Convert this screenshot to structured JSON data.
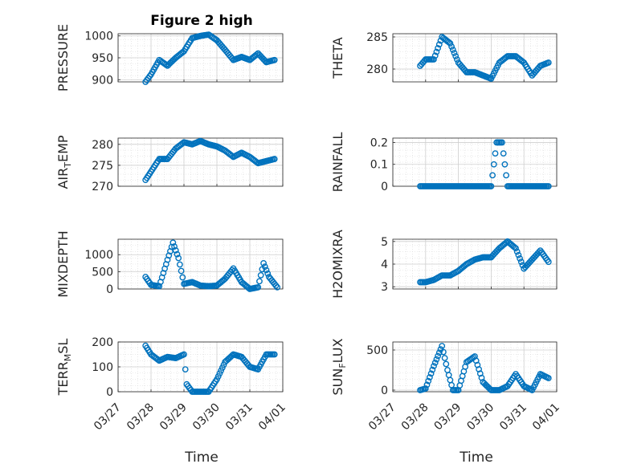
{
  "figure_title": "Figure 2 high",
  "x_axis_label": "Time",
  "x_ticks": [
    "03/27",
    "03/28",
    "03/29",
    "03/30",
    "03/31",
    "04/01"
  ],
  "marker_color": "#0072BD",
  "chart_data": [
    {
      "type": "scatter",
      "id": "pressure",
      "ylabel": "PRESSURE",
      "ylim": [
        895,
        1005
      ],
      "yticks": [
        "900",
        "950",
        "1000"
      ],
      "ytick_values": [
        900,
        950,
        1000
      ],
      "x": [
        "03/27 20:00",
        "03/28 00:00",
        "03/28 06:00",
        "03/28 12:00",
        "03/28 18:00",
        "03/29 00:00",
        "03/29 06:00",
        "03/29 12:00",
        "03/29 18:00",
        "03/30 00:00",
        "03/30 06:00",
        "03/30 12:00",
        "03/30 18:00",
        "03/31 00:00",
        "03/31 06:00",
        "03/31 12:00",
        "03/31 18:00"
      ],
      "y": [
        895,
        912,
        945,
        932,
        950,
        965,
        995,
        1000,
        1003,
        990,
        968,
        945,
        952,
        945,
        960,
        940,
        945
      ]
    },
    {
      "type": "scatter",
      "id": "theta",
      "ylabel": "THETA",
      "ylim": [
        278,
        285.5
      ],
      "yticks": [
        "280",
        "285"
      ],
      "ytick_values": [
        280,
        285
      ],
      "x": [
        "03/27 20:00",
        "03/28 00:00",
        "03/28 06:00",
        "03/28 12:00",
        "03/28 18:00",
        "03/29 00:00",
        "03/29 06:00",
        "03/29 12:00",
        "03/29 18:00",
        "03/30 00:00",
        "03/30 06:00",
        "03/30 12:00",
        "03/30 18:00",
        "03/31 00:00",
        "03/31 06:00",
        "03/31 12:00",
        "03/31 18:00"
      ],
      "y": [
        280.5,
        281.5,
        281.5,
        285,
        284,
        281,
        279.5,
        279.5,
        279,
        278.5,
        281,
        282,
        282,
        281,
        279,
        280.5,
        281
      ]
    },
    {
      "type": "scatter",
      "id": "air_temp",
      "ylabel": "AIR_TEMP",
      "ylim": [
        270,
        281.5
      ],
      "yticks": [
        "270",
        "275",
        "280"
      ],
      "ytick_values": [
        270,
        275,
        280
      ],
      "x": [
        "03/27 20:00",
        "03/28 00:00",
        "03/28 06:00",
        "03/28 12:00",
        "03/28 18:00",
        "03/29 00:00",
        "03/29 06:00",
        "03/29 12:00",
        "03/29 18:00",
        "03/30 00:00",
        "03/30 06:00",
        "03/30 12:00",
        "03/30 18:00",
        "03/31 00:00",
        "03/31 06:00",
        "03/31 12:00",
        "03/31 18:00"
      ],
      "y": [
        271.5,
        273.5,
        276.5,
        276.5,
        279,
        280.5,
        280,
        280.8,
        280,
        279.5,
        278.5,
        277,
        278,
        277,
        275.5,
        276,
        276.5
      ]
    },
    {
      "type": "scatter",
      "id": "rainfall",
      "ylabel": "RAINFALL",
      "ylim": [
        0,
        0.22
      ],
      "yticks": [
        "0",
        "0.1",
        "0.2"
      ],
      "ytick_values": [
        0,
        0.1,
        0.2
      ],
      "x": [
        "03/27 20:00",
        "03/28 00:00",
        "03/28 06:00",
        "03/28 12:00",
        "03/28 18:00",
        "03/29 00:00",
        "03/29 06:00",
        "03/29 12:00",
        "03/29 18:00",
        "03/30 00:00",
        "03/30 04:00",
        "03/30 08:00",
        "03/30 12:00",
        "03/30 18:00",
        "03/31 00:00",
        "03/31 06:00",
        "03/31 12:00",
        "03/31 18:00"
      ],
      "y": [
        0,
        0,
        0,
        0,
        0,
        0,
        0,
        0,
        0,
        0,
        0.2,
        0.2,
        0,
        0,
        0,
        0,
        0,
        0
      ]
    },
    {
      "type": "scatter",
      "id": "mixdepth",
      "ylabel": "MIXDEPTH",
      "ylim": [
        0,
        1450
      ],
      "yticks": [
        "0",
        "500",
        "1000"
      ],
      "ytick_values": [
        0,
        500,
        1000
      ],
      "x": [
        "03/27 20:00",
        "03/28 00:00",
        "03/28 06:00",
        "03/28 12:00",
        "03/28 16:00",
        "03/28 20:00",
        "03/29 00:00",
        "03/29 06:00",
        "03/29 12:00",
        "03/29 18:00",
        "03/30 00:00",
        "03/30 06:00",
        "03/30 12:00",
        "03/30 18:00",
        "03/31 00:00",
        "03/31 06:00",
        "03/31 10:00",
        "03/31 14:00",
        "03/31 20:00"
      ],
      "y": [
        350,
        120,
        80,
        850,
        1350,
        900,
        150,
        200,
        100,
        80,
        100,
        300,
        600,
        200,
        0,
        50,
        750,
        350,
        50
      ]
    },
    {
      "type": "scatter",
      "id": "h2omixra",
      "ylabel": "H2OMIXRA",
      "ylim": [
        2.9,
        5.1
      ],
      "yticks": [
        "3",
        "4",
        "5"
      ],
      "ytick_values": [
        3,
        4,
        5
      ],
      "x": [
        "03/27 20:00",
        "03/28 00:00",
        "03/28 06:00",
        "03/28 12:00",
        "03/28 18:00",
        "03/29 00:00",
        "03/29 06:00",
        "03/29 12:00",
        "03/29 18:00",
        "03/30 00:00",
        "03/30 06:00",
        "03/30 12:00",
        "03/30 18:00",
        "03/31 00:00",
        "03/31 06:00",
        "03/31 12:00",
        "03/31 18:00"
      ],
      "y": [
        3.2,
        3.2,
        3.3,
        3.5,
        3.5,
        3.7,
        4.0,
        4.2,
        4.3,
        4.3,
        4.7,
        5.0,
        4.7,
        3.8,
        4.2,
        4.6,
        4.1
      ]
    },
    {
      "type": "scatter",
      "id": "terr_msl",
      "ylabel": "TERR_MSL",
      "ylim": [
        0,
        200
      ],
      "yticks": [
        "0",
        "100",
        "200"
      ],
      "ytick_values": [
        0,
        100,
        200
      ],
      "x": [
        "03/27 20:00",
        "03/28 00:00",
        "03/28 06:00",
        "03/28 12:00",
        "03/28 18:00",
        "03/29 00:00",
        "03/29 02:00",
        "03/29 06:00",
        "03/29 12:00",
        "03/29 18:00",
        "03/30 00:00",
        "03/30 06:00",
        "03/30 12:00",
        "03/30 18:00",
        "03/31 00:00",
        "03/31 06:00",
        "03/31 12:00",
        "03/31 18:00"
      ],
      "y": [
        185,
        150,
        125,
        140,
        135,
        150,
        30,
        0,
        0,
        0,
        50,
        120,
        150,
        140,
        100,
        90,
        150,
        150
      ]
    },
    {
      "type": "scatter",
      "id": "sun_flux",
      "ylabel": "SUN_FLUX",
      "ylim": [
        -20,
        600
      ],
      "yticks": [
        "0",
        "500"
      ],
      "ytick_values": [
        0,
        500
      ],
      "x": [
        "03/27 20:00",
        "03/28 00:00",
        "03/28 06:00",
        "03/28 12:00",
        "03/28 16:00",
        "03/28 20:00",
        "03/29 00:00",
        "03/29 06:00",
        "03/29 12:00",
        "03/29 18:00",
        "03/30 00:00",
        "03/30 06:00",
        "03/30 12:00",
        "03/30 18:00",
        "03/31 00:00",
        "03/31 06:00",
        "03/31 12:00",
        "03/31 18:00"
      ],
      "y": [
        0,
        20,
        300,
        550,
        250,
        0,
        0,
        350,
        420,
        100,
        0,
        0,
        50,
        200,
        50,
        0,
        200,
        150
      ]
    }
  ]
}
